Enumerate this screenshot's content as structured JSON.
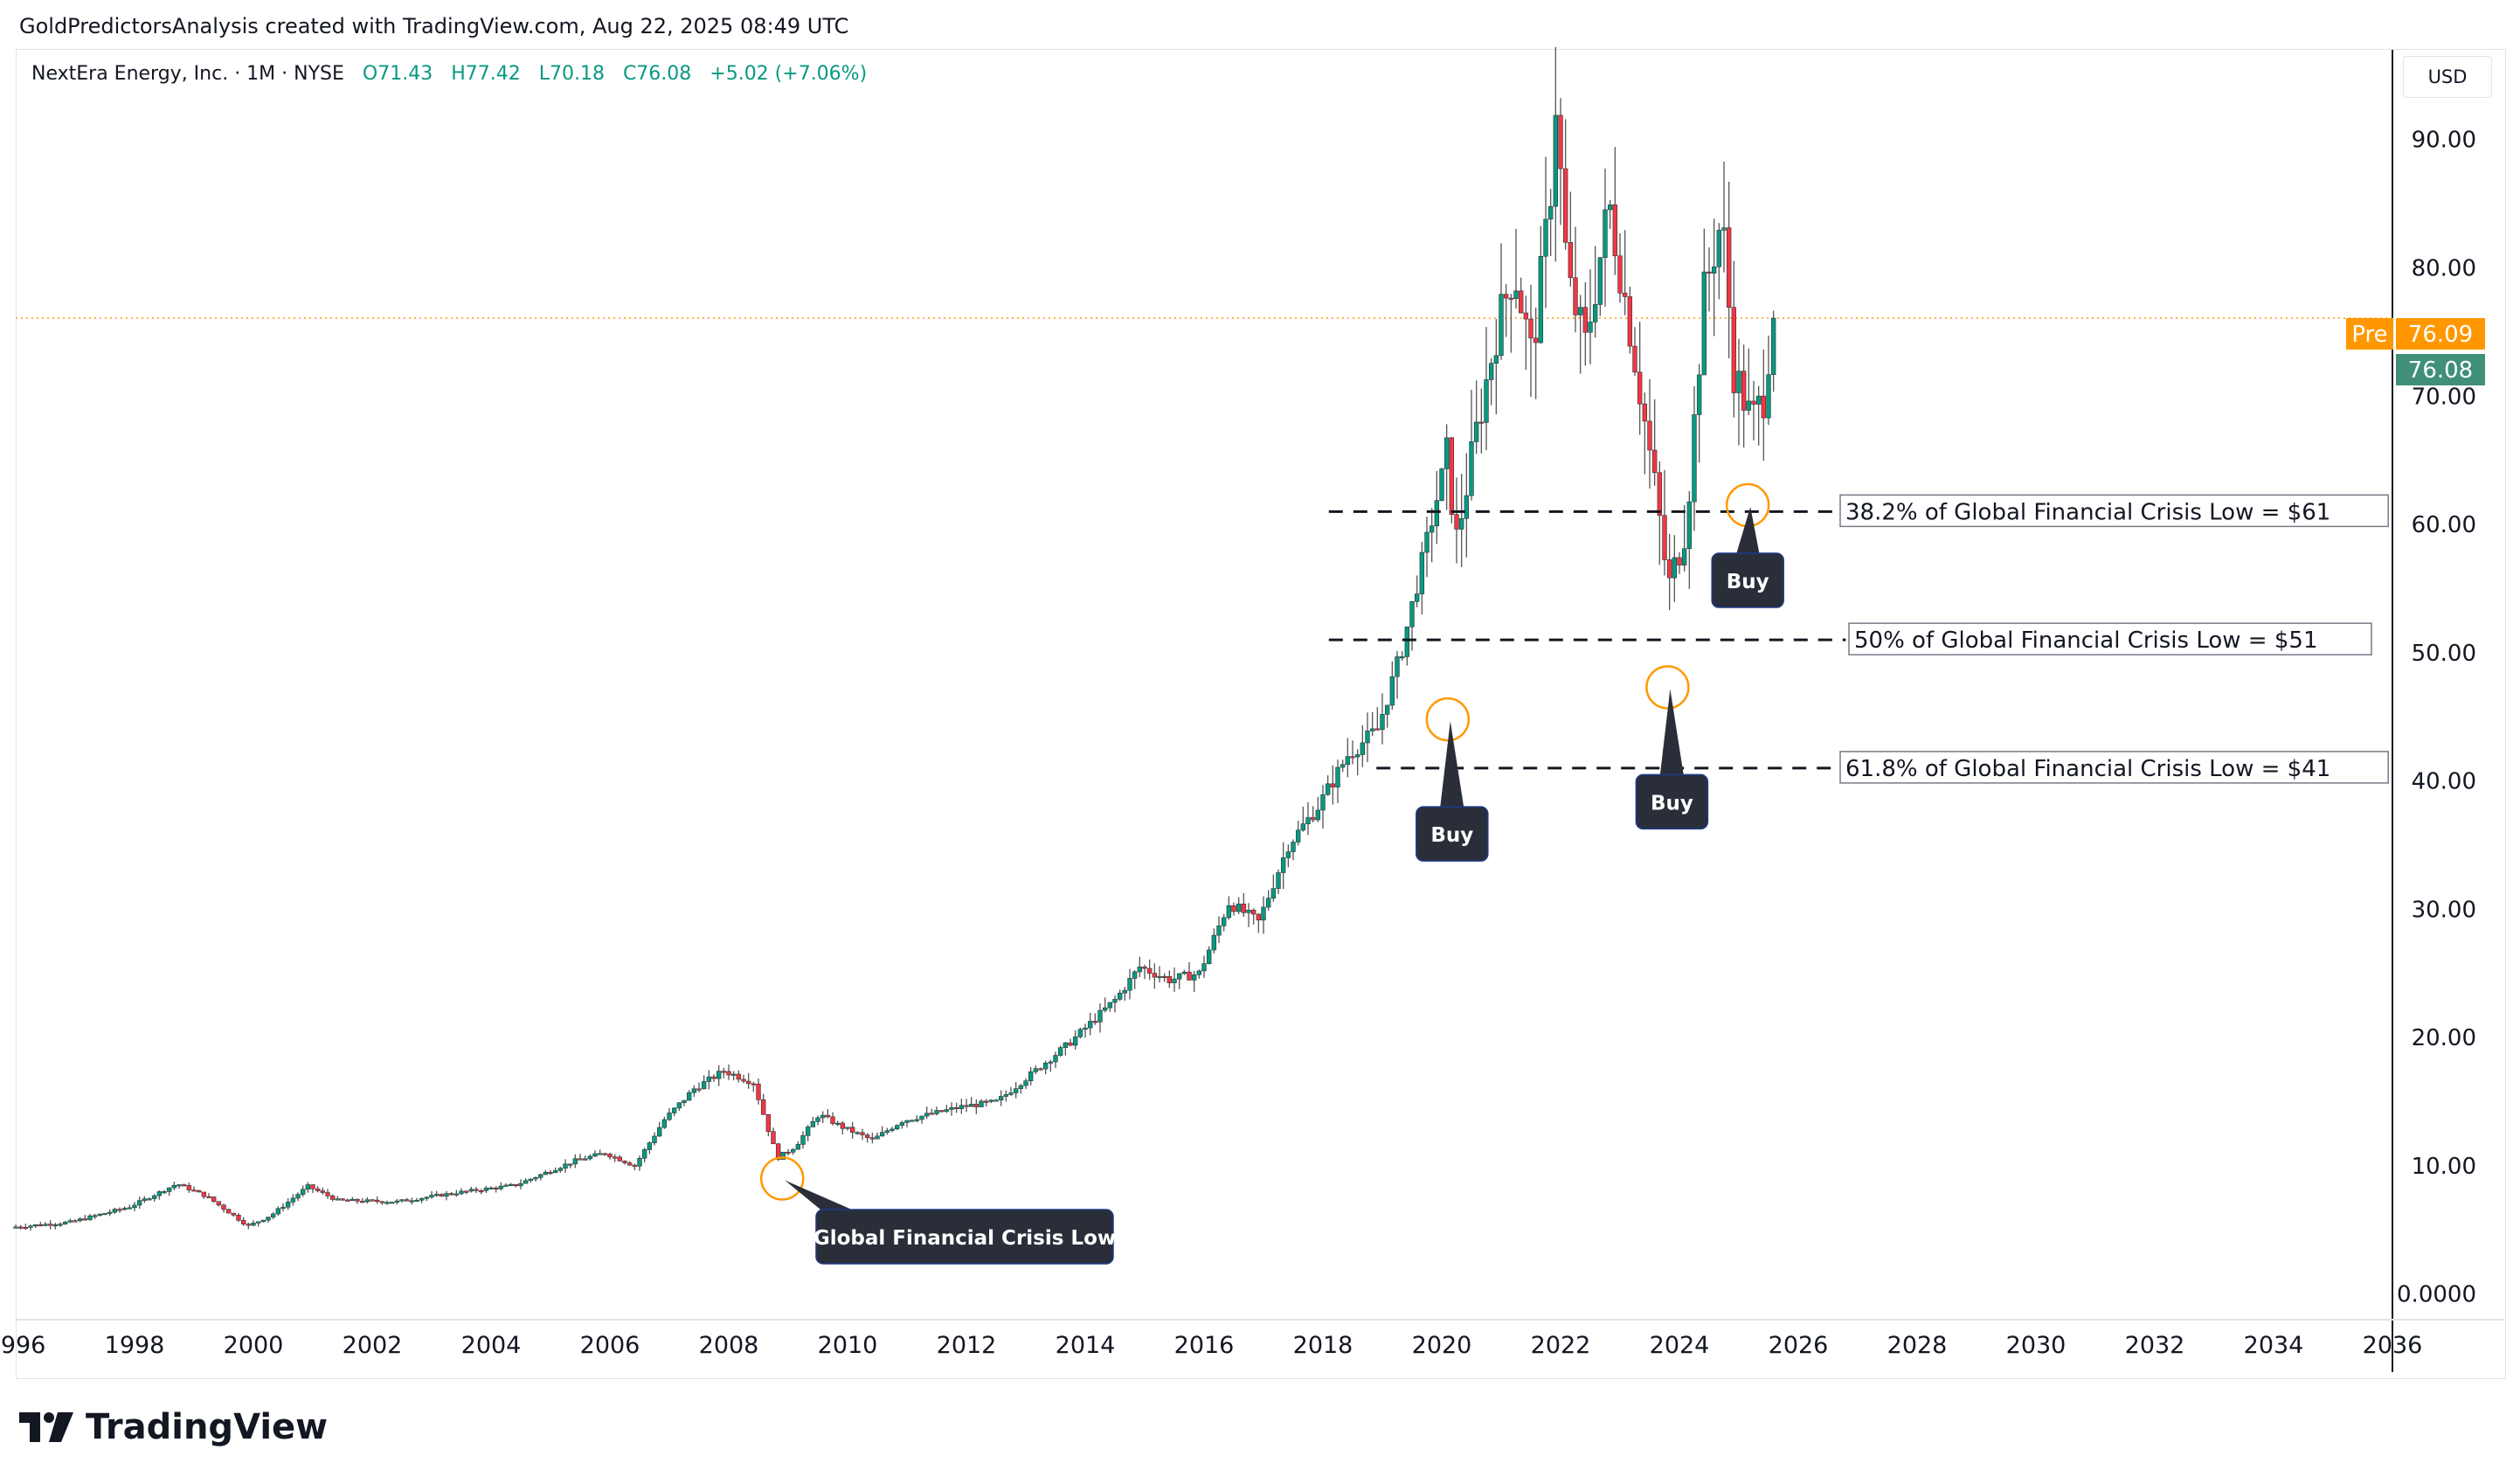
{
  "header": {
    "attribution": "GoldPredictorsAnalysis created with TradingView.com, Aug 22, 2025 08:49 UTC"
  },
  "legend": {
    "symbol": "NextEra Energy, Inc. · 1M · NYSE",
    "open": "O71.43",
    "high": "H77.42",
    "low": "L70.18",
    "close": "C76.08",
    "change": "+5.02 (+7.06%)"
  },
  "currency": "USD",
  "price_tags": {
    "pre_label": "Pre",
    "pre_value": "76.09",
    "last_value": "76.08"
  },
  "footer": {
    "brand": "TradingView",
    "logo_icon": "tradingview-logo-icon"
  },
  "colors": {
    "up": "#089981",
    "down": "#f23645",
    "pre": "#ff9800",
    "annotation_bg": "#2a2e39",
    "grid": "#e0e3eb"
  },
  "chart_data": {
    "type": "candlestick",
    "x_ticks": [
      "1996",
      "1998",
      "2000",
      "2002",
      "2004",
      "2006",
      "2008",
      "2010",
      "2012",
      "2014",
      "2016",
      "2018",
      "2020",
      "2022",
      "2024",
      "2026",
      "2028",
      "2030",
      "2032",
      "2034",
      "2036"
    ],
    "y_ticks": [
      "0.0000",
      "10.00",
      "20.00",
      "30.00",
      "40.00",
      "50.00",
      "60.00",
      "70.00",
      "80.00",
      "90.00"
    ],
    "ylim": [
      -2,
      97
    ],
    "xlim": [
      1996.0,
      2036.0
    ],
    "last_price": 76.08,
    "pre_price": 76.09,
    "price_path": [
      [
        1996.0,
        5.2
      ],
      [
        1997.0,
        5.6
      ],
      [
        1998.0,
        6.8
      ],
      [
        1998.8,
        8.6
      ],
      [
        1999.3,
        7.6
      ],
      [
        2000.0,
        5.3
      ],
      [
        2000.4,
        6.2
      ],
      [
        2001.0,
        8.4
      ],
      [
        2001.5,
        7.3
      ],
      [
        2002.5,
        7.2
      ],
      [
        2003.5,
        7.9
      ],
      [
        2004.5,
        8.5
      ],
      [
        2005.5,
        10.4
      ],
      [
        2006.0,
        11.0
      ],
      [
        2006.5,
        10.0
      ],
      [
        2007.0,
        13.6
      ],
      [
        2007.5,
        16.0
      ],
      [
        2008.0,
        17.4
      ],
      [
        2008.5,
        16.5
      ],
      [
        2008.9,
        10.6
      ],
      [
        2009.2,
        11.5
      ],
      [
        2009.6,
        14.0
      ],
      [
        2010.0,
        13.0
      ],
      [
        2010.5,
        12.0
      ],
      [
        2011.0,
        13.5
      ],
      [
        2012.0,
        14.6
      ],
      [
        2012.6,
        15.0
      ],
      [
        2013.0,
        16.5
      ],
      [
        2013.8,
        19.5
      ],
      [
        2014.6,
        23.0
      ],
      [
        2015.0,
        25.5
      ],
      [
        2015.5,
        24.5
      ],
      [
        2016.0,
        25.0
      ],
      [
        2016.5,
        30.5
      ],
      [
        2017.0,
        29.0
      ],
      [
        2017.5,
        35.0
      ],
      [
        2018.0,
        38.0
      ],
      [
        2018.5,
        42.0
      ],
      [
        2019.0,
        44.0
      ],
      [
        2019.4,
        50.0
      ],
      [
        2019.9,
        60.0
      ],
      [
        2020.2,
        66.0
      ],
      [
        2020.3,
        58.0
      ],
      [
        2020.7,
        68.0
      ],
      [
        2021.0,
        75.0
      ],
      [
        2021.3,
        80.0
      ],
      [
        2021.6,
        73.0
      ],
      [
        2021.9,
        85.0
      ],
      [
        2022.0,
        93.0
      ],
      [
        2022.2,
        79.0
      ],
      [
        2022.5,
        74.0
      ],
      [
        2022.9,
        85.0
      ],
      [
        2023.3,
        74.0
      ],
      [
        2023.7,
        62.0
      ],
      [
        2023.9,
        55.0
      ],
      [
        2024.2,
        60.0
      ],
      [
        2024.5,
        78.0
      ],
      [
        2024.8,
        84.0
      ],
      [
        2025.0,
        72.0
      ],
      [
        2025.3,
        68.0
      ],
      [
        2025.5,
        70.0
      ],
      [
        2025.65,
        76.08
      ]
    ],
    "horizontal_levels": [
      {
        "price": 61,
        "x_start": 2018.1,
        "x_end": 2026.8,
        "label": "38.2% of Global Financial Crisis Low = $61"
      },
      {
        "price": 51,
        "x_start": 2018.1,
        "x_end": 2026.8,
        "label": "50% of Global Financial Crisis Low = $51"
      },
      {
        "price": 41,
        "x_start": 2018.9,
        "x_end": 2026.8,
        "label": "61.8% of Global Financial Crisis Low = $41"
      }
    ],
    "annotations": [
      {
        "label": "Global Financial Crisis Low",
        "circle": [
          2008.9,
          9.0
        ]
      },
      {
        "label": "Buy",
        "circle": [
          2020.1,
          44.8
        ]
      },
      {
        "label": "Buy",
        "circle": [
          2023.8,
          47.3
        ]
      },
      {
        "label": "Buy",
        "circle": [
          2025.15,
          61.5
        ]
      }
    ]
  }
}
